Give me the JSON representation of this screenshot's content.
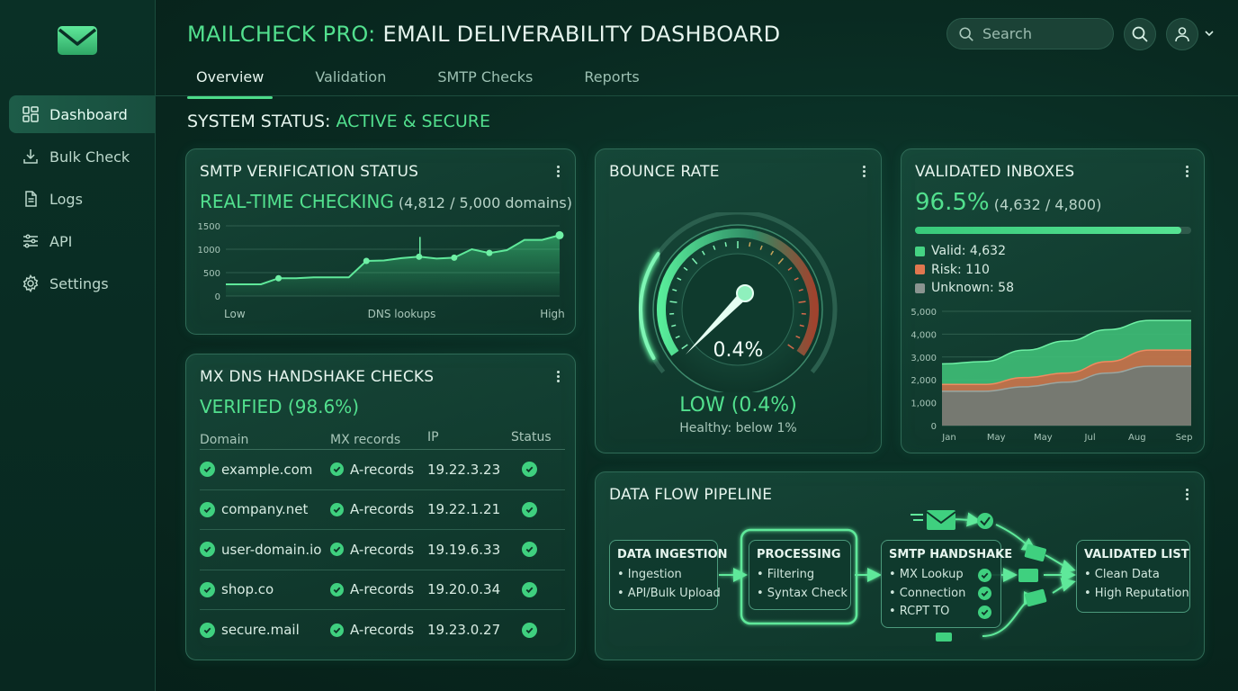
{
  "app": {
    "title_accent": "MAILCHECK PRO:",
    "title_rest": " EMAIL DELIVERABILITY DASHBOARD",
    "logo_icon": "envelope-icon"
  },
  "sidebar": {
    "items": [
      {
        "label": "Dashboard",
        "icon": "dashboard-grid-icon",
        "active": true
      },
      {
        "label": "Bulk Check",
        "icon": "download-icon"
      },
      {
        "label": "Logs",
        "icon": "document-icon"
      },
      {
        "label": "API",
        "icon": "sliders-icon"
      },
      {
        "label": "Settings",
        "icon": "gear-icon"
      }
    ]
  },
  "header": {
    "tabs": [
      {
        "label": "Overview",
        "active": true
      },
      {
        "label": "Validation"
      },
      {
        "label": "SMTP Checks"
      },
      {
        "label": "Reports"
      }
    ],
    "search_placeholder": "Search"
  },
  "system_status": {
    "label": "SYSTEM STATUS:",
    "value": " ACTIVE & SECURE"
  },
  "smtp": {
    "title": "SMTP VERIFICATION STATUS",
    "headline": "REAL-TIME CHECKING",
    "detail": " (4,812 / 5,000 domains)",
    "chart_data": {
      "type": "line",
      "x_labels": [
        "Low",
        "DNS lookups",
        "High"
      ],
      "y_ticks": [
        "1500",
        "1000",
        "500",
        "0"
      ],
      "ylim": [
        0,
        1500
      ],
      "values": [
        250,
        250,
        250,
        380,
        380,
        400,
        400,
        400,
        750,
        760,
        810,
        840,
        800,
        820,
        1000,
        920,
        980,
        1200,
        1200,
        1300
      ]
    }
  },
  "bounce": {
    "title": "BOUNCE RATE",
    "gauge_value": "0.4%",
    "status": "LOW (0.4%)",
    "note": "Healthy: below 1%",
    "chart_data": {
      "type": "gauge",
      "value": 0.4,
      "unit": "%"
    }
  },
  "inboxes": {
    "title": "VALIDATED INBOXES",
    "headline": "96.5%",
    "detail": " (4,632 / 4,800)",
    "progress": 0.965,
    "legend": [
      {
        "label": "Valid: 4,632",
        "color": "#45d383"
      },
      {
        "label": "Risk: 110",
        "color": "#e0774f"
      },
      {
        "label": "Unknown: 58",
        "color": "#8a9490"
      }
    ],
    "chart_data": {
      "type": "area",
      "x_labels": [
        "Jan",
        "May",
        "May",
        "Jul",
        "Aug",
        "Sep"
      ],
      "y_ticks": [
        "5,000",
        "4,000",
        "3,000",
        "2,000",
        "1,000",
        "0"
      ],
      "ylim": [
        0,
        5000
      ],
      "series": [
        {
          "name": "Unknown",
          "color": "#6f7a76",
          "values": [
            1500,
            1500,
            1700,
            1900,
            2300,
            2600,
            2600
          ]
        },
        {
          "name": "Risk",
          "color": "#c96a46",
          "values": [
            1800,
            1800,
            2100,
            2300,
            2800,
            3300,
            3300
          ]
        },
        {
          "name": "Valid",
          "color": "#3fbf78",
          "values": [
            2700,
            2800,
            3300,
            3700,
            4200,
            4600,
            4600
          ]
        }
      ]
    }
  },
  "mx": {
    "title": "MX DNS HANDSHAKE CHECKS",
    "headline": "VERIFIED (98.6%)",
    "columns": [
      "Domain",
      "MX records",
      "IP",
      "Status"
    ],
    "rows": [
      {
        "domain": "example.com",
        "mx": "A-records",
        "ip": "19.22.3.23"
      },
      {
        "domain": "company.net",
        "mx": "A-records",
        "ip": "19.22.1.21"
      },
      {
        "domain": "user-domain.io",
        "mx": "A-records",
        "ip": "19.19.6.33"
      },
      {
        "domain": "shop.co",
        "mx": "A-records",
        "ip": "19.20.0.34"
      },
      {
        "domain": "secure.mail",
        "mx": "A-records",
        "ip": "19.23.0.27"
      }
    ]
  },
  "pipeline": {
    "title": "DATA FLOW PIPELINE",
    "stages": [
      {
        "title": "DATA INGESTION",
        "items": [
          "• Ingestion",
          "• API/Bulk Upload"
        ]
      },
      {
        "title": "PROCESSING",
        "items": [
          "• Filtering",
          "• Syntax Check"
        ]
      },
      {
        "title": "SMTP HANDSHAKE",
        "items": [
          "• MX Lookup",
          "• Connection",
          "• RCPT TO"
        ]
      },
      {
        "title": "VALIDATED LIST",
        "items": [
          "• Clean Data",
          "• High Reputation"
        ]
      }
    ]
  }
}
